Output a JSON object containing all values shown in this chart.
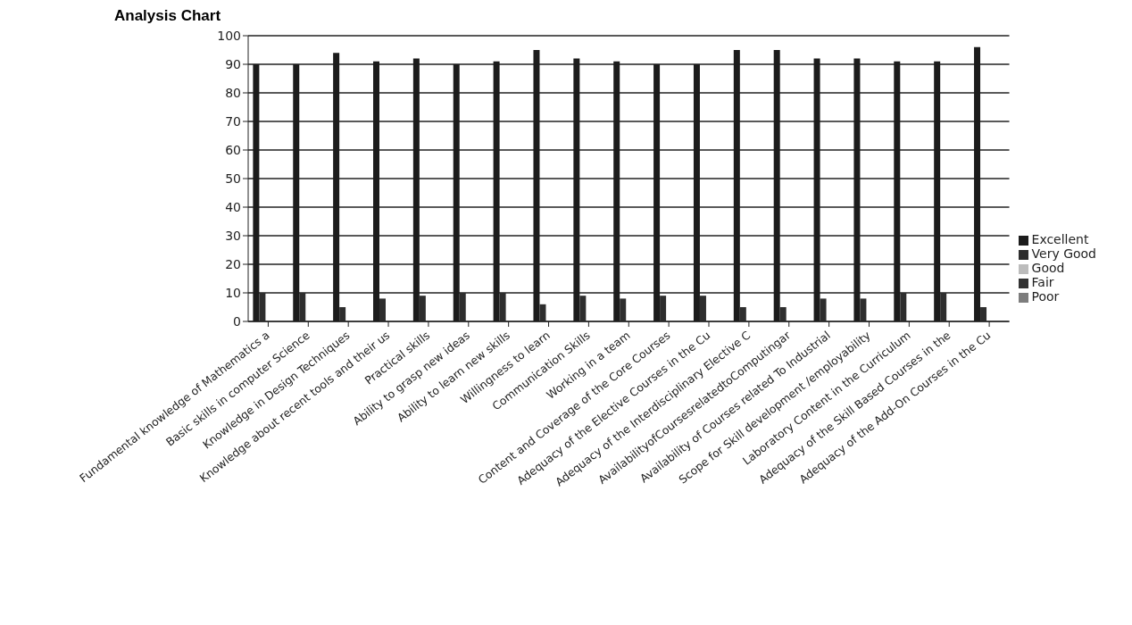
{
  "chart_data": {
    "type": "bar",
    "title": "Analysis Chart",
    "categories": [
      "Fundamental knowledge of Mathematics a",
      "Basic skills in computer Science",
      "Knowledge in Design Techniques",
      "Knowledge about recent tools and their us",
      "Practical skills",
      "Ability to grasp new ideas",
      "Ability to learn new skills",
      "Willingness to learn",
      "Communication Skills",
      "Working in a team",
      "Content and Coverage of the Core Courses",
      "Adequacy of the Elective Courses in the Cu",
      "Adequacy of the Interdisciplinary Elective C",
      "AvailabilityofCoursesrelatedtoComputingar",
      "Availability of Courses related To Industrial",
      "Scope for Skill development /employability",
      "Laboratory Content in the Curriculum",
      "Adequacy of the Skill Based Courses in the",
      "Adequacy of the Add-On Courses in the Cu"
    ],
    "series": [
      {
        "name": "Excellent",
        "color": "#1c1c1c",
        "values": [
          90,
          90,
          94,
          91,
          92,
          90,
          91,
          95,
          92,
          91,
          90,
          90,
          95,
          95,
          92,
          92,
          91,
          91,
          96
        ]
      },
      {
        "name": "Very Good",
        "color": "#2e2e2e",
        "values": [
          10,
          10,
          5,
          8,
          9,
          10,
          10,
          6,
          9,
          8,
          9,
          9,
          5,
          5,
          8,
          8,
          10,
          10,
          5
        ]
      },
      {
        "name": "Good",
        "color": "#bcbcbc",
        "values": [
          0,
          0,
          0,
          0,
          0,
          0,
          0,
          0,
          0,
          0,
          0,
          0,
          0,
          0,
          0,
          0,
          0,
          0,
          0
        ]
      },
      {
        "name": "Fair",
        "color": "#333333",
        "values": [
          0,
          0,
          0,
          0,
          0,
          0,
          0,
          0,
          0,
          0,
          0,
          0,
          0,
          0,
          0,
          0,
          0,
          0,
          0
        ]
      },
      {
        "name": "Poor",
        "color": "#7d7d7d",
        "values": [
          0,
          0,
          0,
          0,
          0,
          0,
          0,
          0,
          0,
          0,
          0,
          0,
          0,
          0,
          0,
          0,
          0,
          0,
          0
        ]
      }
    ],
    "ylim": [
      0,
      100
    ],
    "yticks": [
      0,
      10,
      20,
      30,
      40,
      50,
      60,
      70,
      80,
      90,
      100
    ],
    "grid": "y",
    "legend": "right"
  }
}
